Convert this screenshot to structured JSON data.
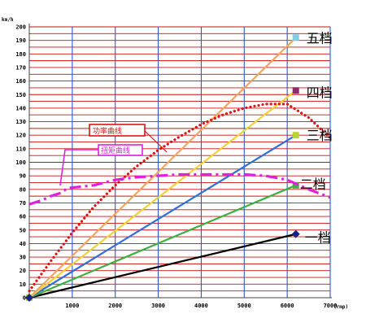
{
  "chart_data": {
    "type": "line",
    "y_unit": "km/h",
    "x_unit": "(rmp)",
    "xlim": [
      0,
      7000
    ],
    "ylim": [
      0,
      200
    ],
    "x_ticks": [
      1000,
      2000,
      3000,
      4000,
      5000,
      6000,
      7000
    ],
    "y_ticks": [
      0,
      10,
      20,
      30,
      40,
      50,
      60,
      70,
      80,
      90,
      100,
      110,
      120,
      130,
      140,
      150,
      160,
      170,
      180,
      190,
      200
    ],
    "grid": true,
    "series": [
      {
        "name": "一档",
        "color": "#000000",
        "marker_color": "#1a237e",
        "x": [
          0,
          6200
        ],
        "y": [
          0,
          47
        ]
      },
      {
        "name": "二档",
        "color": "#3cb043",
        "marker_color": "#3cb043",
        "x": [
          0,
          6200
        ],
        "y": [
          0,
          83
        ]
      },
      {
        "name": "三档",
        "color": "#2f6fd8",
        "marker_color": "#b8d432",
        "x": [
          0,
          6200
        ],
        "y": [
          0,
          120
        ]
      },
      {
        "name": "四档",
        "color": "#f2d13a",
        "marker_color": "#8e2a6a",
        "x": [
          0,
          6200
        ],
        "y": [
          0,
          153
        ]
      },
      {
        "name": "五档",
        "color": "#f4a460",
        "marker_color": "#7ecfe0",
        "x": [
          0,
          6200
        ],
        "y": [
          0,
          192
        ]
      }
    ],
    "curves": [
      {
        "name": "功率曲线",
        "color": "#e01010",
        "style": "dotted",
        "x": [
          0,
          500,
          1000,
          1500,
          2000,
          2500,
          3000,
          3500,
          4000,
          4500,
          5000,
          5500,
          6000,
          6500,
          7000
        ],
        "y": [
          5,
          27,
          48,
          67,
          83,
          97,
          109,
          119,
          128,
          135,
          140,
          143,
          143,
          133,
          118
        ]
      },
      {
        "name": "扭矩曲线",
        "color": "#e020e0",
        "style": "dash-dot",
        "x": [
          0,
          300,
          500,
          700,
          900,
          1500,
          2000,
          2500,
          3000,
          3500,
          4000,
          4500,
          5000,
          5500,
          6000,
          6500,
          7000
        ],
        "y": [
          69,
          72,
          75,
          77,
          81,
          83,
          87,
          89,
          90,
          91,
          91,
          91,
          91,
          90,
          87,
          80,
          74
        ]
      }
    ]
  }
}
